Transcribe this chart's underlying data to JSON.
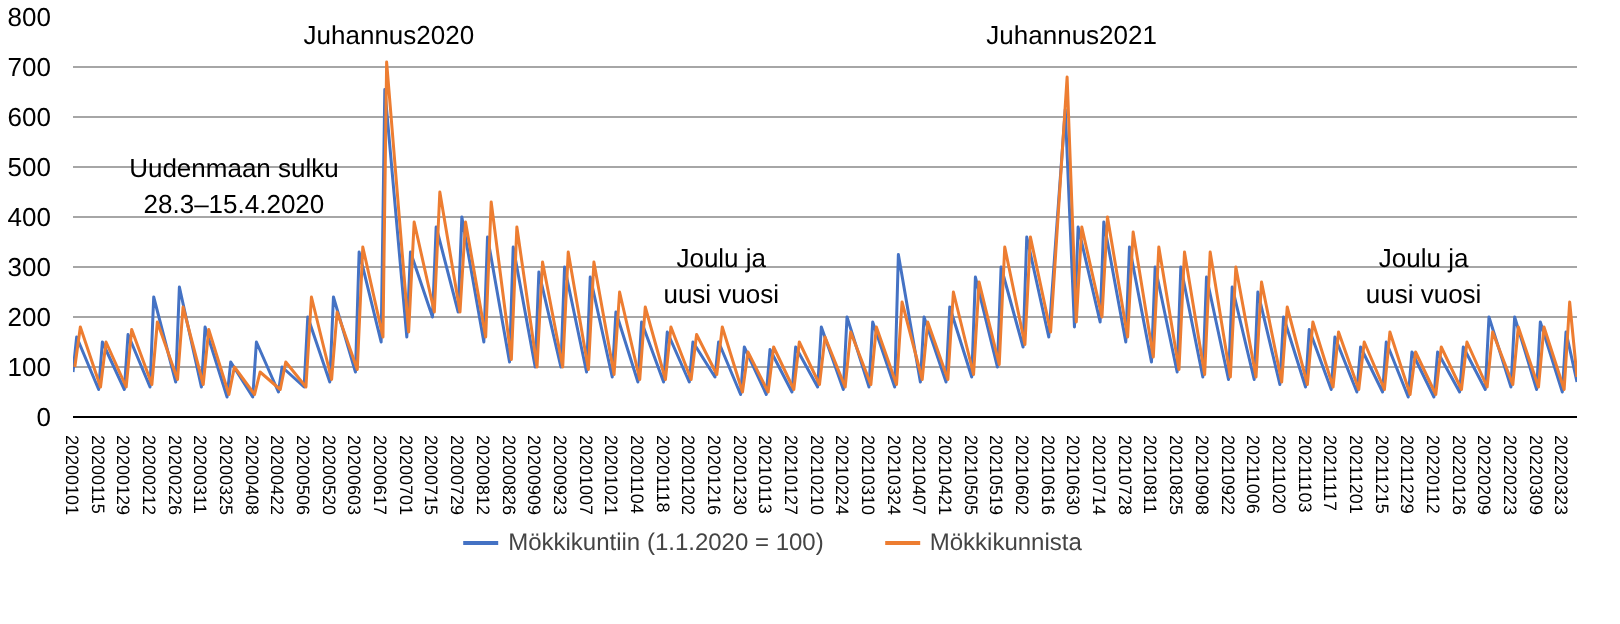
{
  "chart_data": {
    "type": "line",
    "xlim": [
      "2020-01-01",
      "2022-03-31"
    ],
    "xticks": [
      {
        "value": "2020-01-01",
        "label": "20200101"
      },
      {
        "value": "2020-01-15",
        "label": "20200115"
      },
      {
        "value": "2020-01-29",
        "label": "20200129"
      },
      {
        "value": "2020-02-12",
        "label": "20200212"
      },
      {
        "value": "2020-02-26",
        "label": "20200226"
      },
      {
        "value": "2020-03-11",
        "label": "20200311"
      },
      {
        "value": "2020-03-25",
        "label": "20200325"
      },
      {
        "value": "2020-04-08",
        "label": "20200408"
      },
      {
        "value": "2020-04-22",
        "label": "20200422"
      },
      {
        "value": "2020-05-06",
        "label": "20200506"
      },
      {
        "value": "2020-05-20",
        "label": "20200520"
      },
      {
        "value": "2020-06-03",
        "label": "20200603"
      },
      {
        "value": "2020-06-17",
        "label": "20200617"
      },
      {
        "value": "2020-07-01",
        "label": "20200701"
      },
      {
        "value": "2020-07-15",
        "label": "20200715"
      },
      {
        "value": "2020-07-29",
        "label": "20200729"
      },
      {
        "value": "2020-08-12",
        "label": "20200812"
      },
      {
        "value": "2020-08-26",
        "label": "20200826"
      },
      {
        "value": "2020-09-09",
        "label": "20200909"
      },
      {
        "value": "2020-09-23",
        "label": "20200923"
      },
      {
        "value": "2020-10-07",
        "label": "20201007"
      },
      {
        "value": "2020-10-21",
        "label": "20201021"
      },
      {
        "value": "2020-11-04",
        "label": "20201104"
      },
      {
        "value": "2020-11-18",
        "label": "20201118"
      },
      {
        "value": "2020-12-02",
        "label": "20201202"
      },
      {
        "value": "2020-12-16",
        "label": "20201216"
      },
      {
        "value": "2020-12-30",
        "label": "20201230"
      },
      {
        "value": "2021-01-13",
        "label": "20210113"
      },
      {
        "value": "2021-01-27",
        "label": "20210127"
      },
      {
        "value": "2021-02-10",
        "label": "20210210"
      },
      {
        "value": "2021-02-24",
        "label": "20210224"
      },
      {
        "value": "2021-03-10",
        "label": "20210310"
      },
      {
        "value": "2021-03-24",
        "label": "20210324"
      },
      {
        "value": "2021-04-07",
        "label": "20210407"
      },
      {
        "value": "2021-04-21",
        "label": "20210421"
      },
      {
        "value": "2021-05-05",
        "label": "20210505"
      },
      {
        "value": "2021-05-19",
        "label": "20210519"
      },
      {
        "value": "2021-06-02",
        "label": "20210602"
      },
      {
        "value": "2021-06-16",
        "label": "20210616"
      },
      {
        "value": "2021-06-30",
        "label": "20210630"
      },
      {
        "value": "2021-07-14",
        "label": "20210714"
      },
      {
        "value": "2021-07-28",
        "label": "20210728"
      },
      {
        "value": "2021-08-11",
        "label": "20210811"
      },
      {
        "value": "2021-08-25",
        "label": "20210825"
      },
      {
        "value": "2021-09-08",
        "label": "20210908"
      },
      {
        "value": "2021-09-22",
        "label": "20210922"
      },
      {
        "value": "2021-10-06",
        "label": "20211006"
      },
      {
        "value": "2021-10-20",
        "label": "20211020"
      },
      {
        "value": "2021-11-03",
        "label": "20211103"
      },
      {
        "value": "2021-11-17",
        "label": "20211117"
      },
      {
        "value": "2021-12-01",
        "label": "20211201"
      },
      {
        "value": "2021-12-15",
        "label": "20211215"
      },
      {
        "value": "2021-12-29",
        "label": "20211229"
      },
      {
        "value": "2022-01-12",
        "label": "20220112"
      },
      {
        "value": "2022-01-26",
        "label": "20220126"
      },
      {
        "value": "2022-02-09",
        "label": "20220209"
      },
      {
        "value": "2022-02-23",
        "label": "20220223"
      },
      {
        "value": "2022-03-09",
        "label": "20220309"
      },
      {
        "value": "2022-03-23",
        "label": "20220323"
      }
    ],
    "ylim": [
      0,
      800
    ],
    "yticks": [
      0,
      100,
      200,
      300,
      400,
      500,
      600,
      700,
      800
    ],
    "grid": "y",
    "legend": "bottom",
    "annotations": [
      "Juhannus2020",
      "Uudenmaan sulku\n28.3–15.4.2020",
      "Joulu ja\nuusi vuosi",
      "Juhannus2021",
      "Joulu ja\nuusi vuosi"
    ],
    "series": [
      {
        "name": "Mökkikuntiin (1.1.2020 = 100)",
        "color": "#4472c4",
        "x": [
          "2020-01-01",
          "2020-01-03",
          "2020-01-15",
          "2020-01-17",
          "2020-01-29",
          "2020-01-31",
          "2020-02-12",
          "2020-02-14",
          "2020-02-26",
          "2020-02-28",
          "2020-03-11",
          "2020-03-13",
          "2020-03-25",
          "2020-03-27",
          "2020-04-08",
          "2020-04-10",
          "2020-04-22",
          "2020-04-24",
          "2020-05-06",
          "2020-05-08",
          "2020-05-20",
          "2020-05-22",
          "2020-06-03",
          "2020-06-05",
          "2020-06-17",
          "2020-06-19",
          "2020-07-01",
          "2020-07-03",
          "2020-07-15",
          "2020-07-17",
          "2020-07-29",
          "2020-07-31",
          "2020-08-12",
          "2020-08-14",
          "2020-08-26",
          "2020-08-28",
          "2020-09-09",
          "2020-09-11",
          "2020-09-23",
          "2020-09-25",
          "2020-10-07",
          "2020-10-09",
          "2020-10-21",
          "2020-10-23",
          "2020-11-04",
          "2020-11-06",
          "2020-11-18",
          "2020-11-20",
          "2020-12-02",
          "2020-12-04",
          "2020-12-16",
          "2020-12-18",
          "2020-12-30",
          "2021-01-01",
          "2021-01-13",
          "2021-01-15",
          "2021-01-27",
          "2021-01-29",
          "2021-02-10",
          "2021-02-12",
          "2021-02-24",
          "2021-02-26",
          "2021-03-10",
          "2021-03-12",
          "2021-03-24",
          "2021-03-26",
          "2021-04-07",
          "2021-04-09",
          "2021-04-21",
          "2021-04-23",
          "2021-05-05",
          "2021-05-07",
          "2021-05-19",
          "2021-05-21",
          "2021-06-02",
          "2021-06-04",
          "2021-06-16",
          "2021-06-25",
          "2021-06-30",
          "2021-07-02",
          "2021-07-14",
          "2021-07-16",
          "2021-07-28",
          "2021-07-30",
          "2021-08-11",
          "2021-08-13",
          "2021-08-25",
          "2021-08-27",
          "2021-09-08",
          "2021-09-10",
          "2021-09-22",
          "2021-09-24",
          "2021-10-06",
          "2021-10-08",
          "2021-10-20",
          "2021-10-22",
          "2021-11-03",
          "2021-11-05",
          "2021-11-17",
          "2021-11-19",
          "2021-12-01",
          "2021-12-03",
          "2021-12-15",
          "2021-12-17",
          "2021-12-29",
          "2021-12-31",
          "2022-01-12",
          "2022-01-14",
          "2022-01-26",
          "2022-01-28",
          "2022-02-09",
          "2022-02-11",
          "2022-02-23",
          "2022-02-25",
          "2022-03-09",
          "2022-03-11",
          "2022-03-23",
          "2022-03-25",
          "2022-03-31"
        ],
        "values": [
          90,
          160,
          55,
          150,
          55,
          165,
          60,
          240,
          70,
          260,
          60,
          180,
          40,
          110,
          40,
          150,
          50,
          100,
          60,
          200,
          70,
          240,
          90,
          330,
          150,
          655,
          160,
          330,
          200,
          380,
          210,
          400,
          150,
          360,
          110,
          340,
          100,
          290,
          100,
          300,
          90,
          280,
          80,
          210,
          70,
          190,
          70,
          170,
          70,
          150,
          80,
          150,
          45,
          140,
          45,
          135,
          50,
          140,
          60,
          180,
          55,
          200,
          60,
          190,
          60,
          325,
          70,
          200,
          70,
          220,
          80,
          280,
          100,
          300,
          140,
          360,
          160,
          615,
          180,
          380,
          190,
          390,
          150,
          340,
          110,
          300,
          90,
          300,
          80,
          280,
          75,
          260,
          75,
          250,
          65,
          200,
          60,
          175,
          55,
          160,
          50,
          140,
          50,
          150,
          40,
          130,
          40,
          130,
          50,
          140,
          55,
          200,
          60,
          200,
          55,
          190,
          50,
          170,
          70
        ]
      },
      {
        "name": "Mökkikunnista",
        "color": "#ed7d31",
        "x": [
          "2020-01-02",
          "2020-01-05",
          "2020-01-16",
          "2020-01-19",
          "2020-01-30",
          "2020-02-02",
          "2020-02-13",
          "2020-02-16",
          "2020-02-27",
          "2020-03-01",
          "2020-03-12",
          "2020-03-15",
          "2020-03-26",
          "2020-03-29",
          "2020-04-09",
          "2020-04-12",
          "2020-04-23",
          "2020-04-26",
          "2020-05-07",
          "2020-05-10",
          "2020-05-21",
          "2020-05-24",
          "2020-06-04",
          "2020-06-07",
          "2020-06-18",
          "2020-06-20",
          "2020-07-02",
          "2020-07-05",
          "2020-07-16",
          "2020-07-19",
          "2020-07-30",
          "2020-08-02",
          "2020-08-13",
          "2020-08-16",
          "2020-08-27",
          "2020-08-30",
          "2020-09-10",
          "2020-09-13",
          "2020-09-24",
          "2020-09-27",
          "2020-10-08",
          "2020-10-11",
          "2020-10-22",
          "2020-10-25",
          "2020-11-05",
          "2020-11-08",
          "2020-11-19",
          "2020-11-22",
          "2020-12-03",
          "2020-12-06",
          "2020-12-17",
          "2020-12-20",
          "2020-12-31",
          "2021-01-03",
          "2021-01-14",
          "2021-01-17",
          "2021-01-28",
          "2021-01-31",
          "2021-02-11",
          "2021-02-14",
          "2021-02-25",
          "2021-02-28",
          "2021-03-11",
          "2021-03-14",
          "2021-03-25",
          "2021-03-28",
          "2021-04-08",
          "2021-04-11",
          "2021-04-22",
          "2021-04-25",
          "2021-05-06",
          "2021-05-09",
          "2021-05-20",
          "2021-05-23",
          "2021-06-03",
          "2021-06-06",
          "2021-06-17",
          "2021-06-26",
          "2021-07-01",
          "2021-07-04",
          "2021-07-15",
          "2021-07-18",
          "2021-07-29",
          "2021-08-01",
          "2021-08-12",
          "2021-08-15",
          "2021-08-26",
          "2021-08-29",
          "2021-09-09",
          "2021-09-12",
          "2021-09-23",
          "2021-09-26",
          "2021-10-07",
          "2021-10-10",
          "2021-10-21",
          "2021-10-24",
          "2021-11-04",
          "2021-11-07",
          "2021-11-18",
          "2021-11-21",
          "2021-12-02",
          "2021-12-05",
          "2021-12-16",
          "2021-12-19",
          "2021-12-30",
          "2022-01-02",
          "2022-01-13",
          "2022-01-16",
          "2022-01-27",
          "2022-01-30",
          "2022-02-10",
          "2022-02-13",
          "2022-02-24",
          "2022-02-27",
          "2022-03-10",
          "2022-03-13",
          "2022-03-24",
          "2022-03-27",
          "2022-03-31"
        ],
        "values": [
          100,
          180,
          60,
          150,
          60,
          175,
          65,
          190,
          75,
          220,
          65,
          175,
          45,
          100,
          45,
          90,
          55,
          110,
          60,
          240,
          75,
          210,
          95,
          340,
          160,
          710,
          170,
          390,
          210,
          450,
          210,
          390,
          160,
          430,
          115,
          380,
          100,
          310,
          100,
          330,
          95,
          310,
          85,
          250,
          75,
          220,
          75,
          180,
          75,
          165,
          85,
          180,
          50,
          130,
          50,
          140,
          55,
          150,
          65,
          160,
          60,
          170,
          65,
          180,
          65,
          230,
          75,
          190,
          75,
          250,
          85,
          270,
          105,
          340,
          145,
          360,
          170,
          680,
          190,
          380,
          200,
          400,
          160,
          370,
          120,
          340,
          95,
          330,
          85,
          330,
          80,
          300,
          80,
          270,
          70,
          220,
          65,
          190,
          60,
          170,
          55,
          150,
          55,
          170,
          45,
          130,
          45,
          140,
          55,
          150,
          60,
          170,
          65,
          180,
          60,
          180,
          55,
          230,
          80
        ]
      }
    ]
  }
}
